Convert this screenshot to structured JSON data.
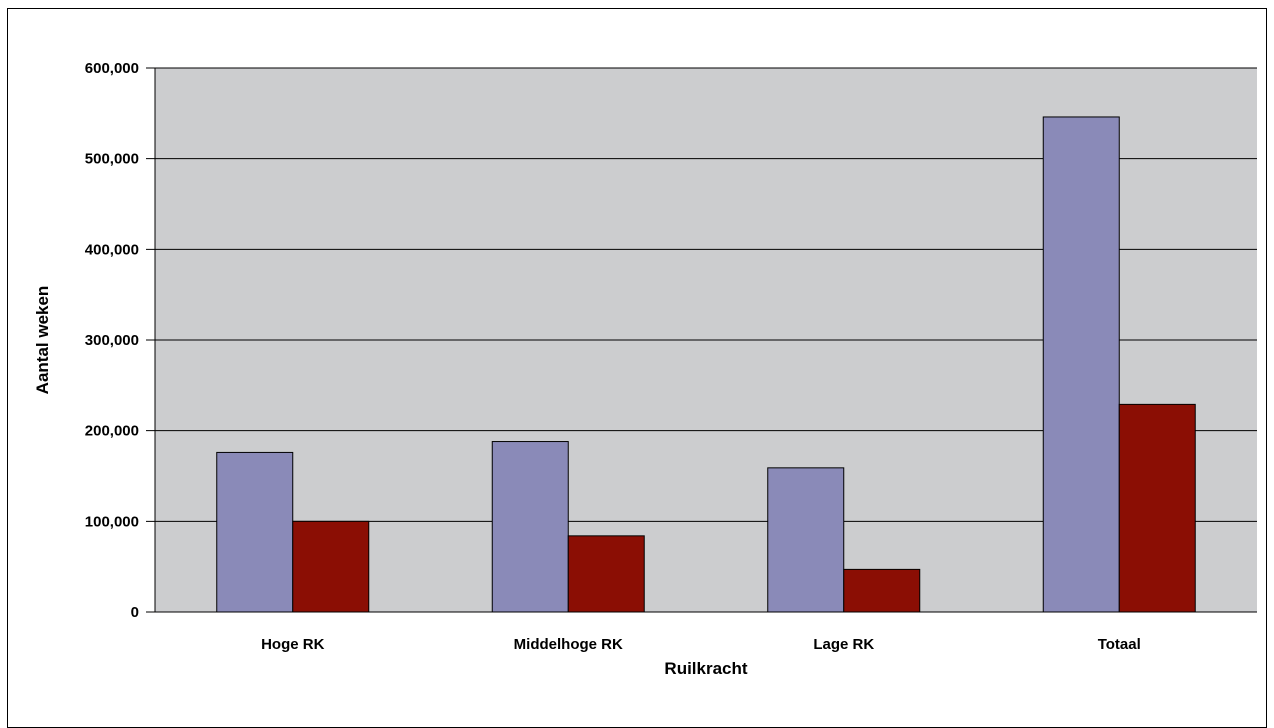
{
  "chart_data": {
    "type": "bar",
    "title": "",
    "xlabel": "Ruilkracht",
    "ylabel": "Aantal weken",
    "categories": [
      "Hoge RK",
      "Middelhoge RK",
      "Lage RK",
      "Totaal"
    ],
    "ylim": [
      0,
      600000
    ],
    "yticks": [
      0,
      100000,
      200000,
      300000,
      400000,
      500000,
      600000
    ],
    "ytick_labels": [
      "0",
      "100,000",
      "200,000",
      "300,000",
      "400,000",
      "500,000",
      "600,000"
    ],
    "series": [
      {
        "values": [
          176000,
          188000,
          159000,
          546000
        ],
        "color": "#8a8ab8"
      },
      {
        "values": [
          100000,
          84000,
          47000,
          229000
        ],
        "color": "#8b0e04"
      }
    ],
    "plot_background": "#cccdcf",
    "grid": true,
    "legend": "none"
  }
}
